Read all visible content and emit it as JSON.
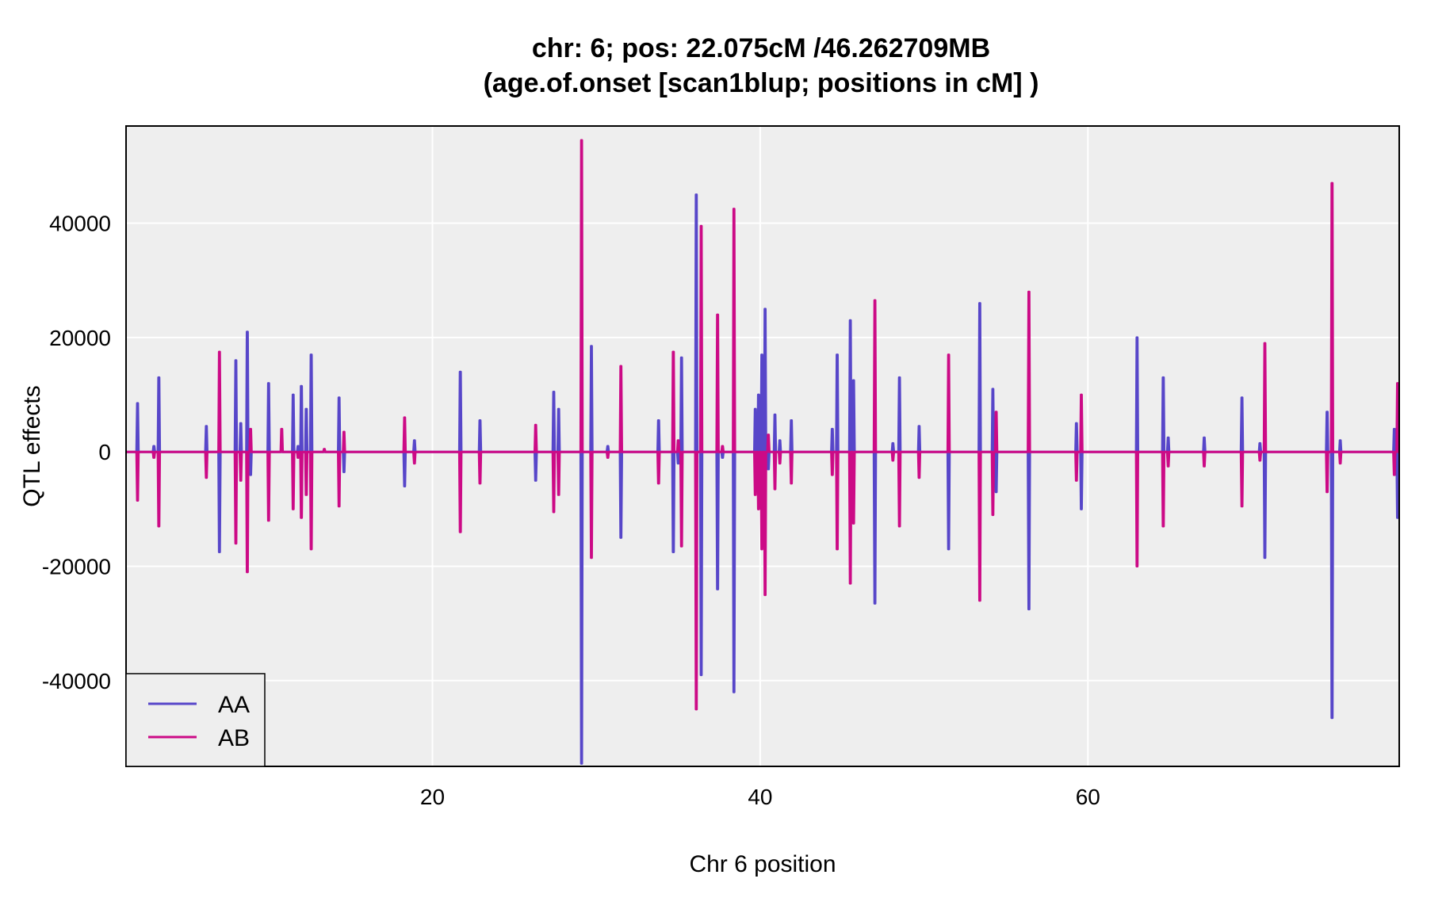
{
  "chart_data": {
    "type": "line",
    "title": "chr: 6; pos: 22.075cM /46.262709MB",
    "subtitle": "(age.of.onset [scan1blup; positions in cM] )",
    "xlabel": "Chr 6 position",
    "ylabel": "QTL effects",
    "xlim": [
      1.3,
      79.0
    ],
    "ylim": [
      -55000,
      57000
    ],
    "xticks": [
      20,
      40,
      60
    ],
    "yticks": [
      -40000,
      -20000,
      0,
      20000,
      40000
    ],
    "xtick_labels": [
      "20",
      "40",
      "60"
    ],
    "ytick_labels": [
      "-40000",
      "-20000",
      "0",
      "20000",
      "40000"
    ],
    "grid": true,
    "legend_position": "bottom-left",
    "colors": {
      "AA": "#5746C9",
      "AB": "#CC0A86",
      "panel_bg": "#EEEEEE",
      "grid": "#FFFFFF"
    },
    "series": [
      {
        "name": "AA",
        "color": "#5746C9",
        "spikes": [
          [
            2.0,
            8500
          ],
          [
            3.0,
            1000
          ],
          [
            3.3,
            13000
          ],
          [
            6.2,
            4500
          ],
          [
            7.0,
            -17500
          ],
          [
            8.0,
            16000
          ],
          [
            8.3,
            5000
          ],
          [
            8.7,
            21000
          ],
          [
            8.9,
            -4000
          ],
          [
            10.0,
            12000
          ],
          [
            11.5,
            10000
          ],
          [
            11.8,
            1000
          ],
          [
            12.0,
            11500
          ],
          [
            12.3,
            7500
          ],
          [
            12.6,
            17000
          ],
          [
            14.3,
            9500
          ],
          [
            14.6,
            -3500
          ],
          [
            18.3,
            -6000
          ],
          [
            18.9,
            2000
          ],
          [
            21.7,
            14000
          ],
          [
            22.9,
            5500
          ],
          [
            26.3,
            -5000
          ],
          [
            27.4,
            10500
          ],
          [
            27.7,
            7500
          ],
          [
            29.1,
            -54500
          ],
          [
            29.7,
            18500
          ],
          [
            30.7,
            1000
          ],
          [
            31.5,
            -15000
          ],
          [
            33.8,
            5500
          ],
          [
            34.7,
            -17500
          ],
          [
            35.0,
            -2000
          ],
          [
            35.2,
            16500
          ],
          [
            36.1,
            45000
          ],
          [
            36.4,
            -39000
          ],
          [
            37.4,
            -24000
          ],
          [
            37.7,
            -1000
          ],
          [
            38.4,
            -42000
          ],
          [
            39.7,
            7500
          ],
          [
            39.9,
            10000
          ],
          [
            40.1,
            17000
          ],
          [
            40.3,
            25000
          ],
          [
            40.5,
            -3000
          ],
          [
            40.9,
            6500
          ],
          [
            41.2,
            2000
          ],
          [
            41.9,
            5500
          ],
          [
            44.4,
            4000
          ],
          [
            44.7,
            17000
          ],
          [
            45.5,
            23000
          ],
          [
            45.7,
            12500
          ],
          [
            47.0,
            -26500
          ],
          [
            48.1,
            1500
          ],
          [
            48.5,
            13000
          ],
          [
            49.7,
            4500
          ],
          [
            51.5,
            -17000
          ],
          [
            53.4,
            26000
          ],
          [
            54.2,
            11000
          ],
          [
            54.4,
            -7000
          ],
          [
            56.4,
            -27500
          ],
          [
            59.3,
            5000
          ],
          [
            59.6,
            -10000
          ],
          [
            63.0,
            20000
          ],
          [
            64.6,
            13000
          ],
          [
            64.9,
            2500
          ],
          [
            67.1,
            2500
          ],
          [
            69.4,
            9500
          ],
          [
            70.5,
            1500
          ],
          [
            70.8,
            -18500
          ],
          [
            74.6,
            7000
          ],
          [
            74.9,
            -46500
          ],
          [
            75.4,
            2000
          ],
          [
            78.7,
            4000
          ],
          [
            78.9,
            -11500
          ]
        ]
      },
      {
        "name": "AB",
        "color": "#CC0A86",
        "spikes": [
          [
            2.0,
            -8500
          ],
          [
            3.0,
            -1000
          ],
          [
            3.3,
            -13000
          ],
          [
            6.2,
            -4500
          ],
          [
            7.0,
            17500
          ],
          [
            8.0,
            -16000
          ],
          [
            8.3,
            -5000
          ],
          [
            8.7,
            -21000
          ],
          [
            8.9,
            4000
          ],
          [
            10.0,
            -12000
          ],
          [
            10.8,
            4000
          ],
          [
            11.5,
            -10000
          ],
          [
            11.8,
            -1000
          ],
          [
            12.0,
            -11500
          ],
          [
            12.3,
            -7500
          ],
          [
            12.6,
            -17000
          ],
          [
            13.4,
            500
          ],
          [
            14.3,
            -9500
          ],
          [
            14.6,
            3500
          ],
          [
            18.3,
            6000
          ],
          [
            18.9,
            -2000
          ],
          [
            21.7,
            -14000
          ],
          [
            22.9,
            -5500
          ],
          [
            26.3,
            4700
          ],
          [
            27.4,
            -10500
          ],
          [
            27.7,
            -7500
          ],
          [
            29.1,
            54500
          ],
          [
            29.7,
            -18500
          ],
          [
            30.7,
            -1000
          ],
          [
            31.5,
            15000
          ],
          [
            33.8,
            -5500
          ],
          [
            34.7,
            17500
          ],
          [
            35.0,
            2000
          ],
          [
            35.2,
            -16500
          ],
          [
            36.1,
            -45000
          ],
          [
            36.4,
            39500
          ],
          [
            37.4,
            24000
          ],
          [
            37.7,
            1000
          ],
          [
            38.4,
            42500
          ],
          [
            39.7,
            -7500
          ],
          [
            39.9,
            -10000
          ],
          [
            40.1,
            -17000
          ],
          [
            40.3,
            -25000
          ],
          [
            40.5,
            3000
          ],
          [
            40.9,
            -6500
          ],
          [
            41.2,
            -2000
          ],
          [
            41.9,
            -5500
          ],
          [
            44.4,
            -4000
          ],
          [
            44.7,
            -17000
          ],
          [
            45.5,
            -23000
          ],
          [
            45.7,
            -12500
          ],
          [
            47.0,
            26500
          ],
          [
            48.1,
            -1500
          ],
          [
            48.5,
            -13000
          ],
          [
            49.7,
            -4500
          ],
          [
            51.5,
            17000
          ],
          [
            53.4,
            -26000
          ],
          [
            54.2,
            -11000
          ],
          [
            54.4,
            7000
          ],
          [
            56.4,
            28000
          ],
          [
            59.3,
            -5000
          ],
          [
            59.6,
            10000
          ],
          [
            63.0,
            -20000
          ],
          [
            64.6,
            -13000
          ],
          [
            64.9,
            -2500
          ],
          [
            67.1,
            -2500
          ],
          [
            69.4,
            -9500
          ],
          [
            70.5,
            -1500
          ],
          [
            70.8,
            19000
          ],
          [
            74.6,
            -7000
          ],
          [
            74.9,
            47000
          ],
          [
            75.4,
            -2000
          ],
          [
            78.7,
            -4000
          ],
          [
            78.9,
            12000
          ]
        ]
      }
    ]
  }
}
